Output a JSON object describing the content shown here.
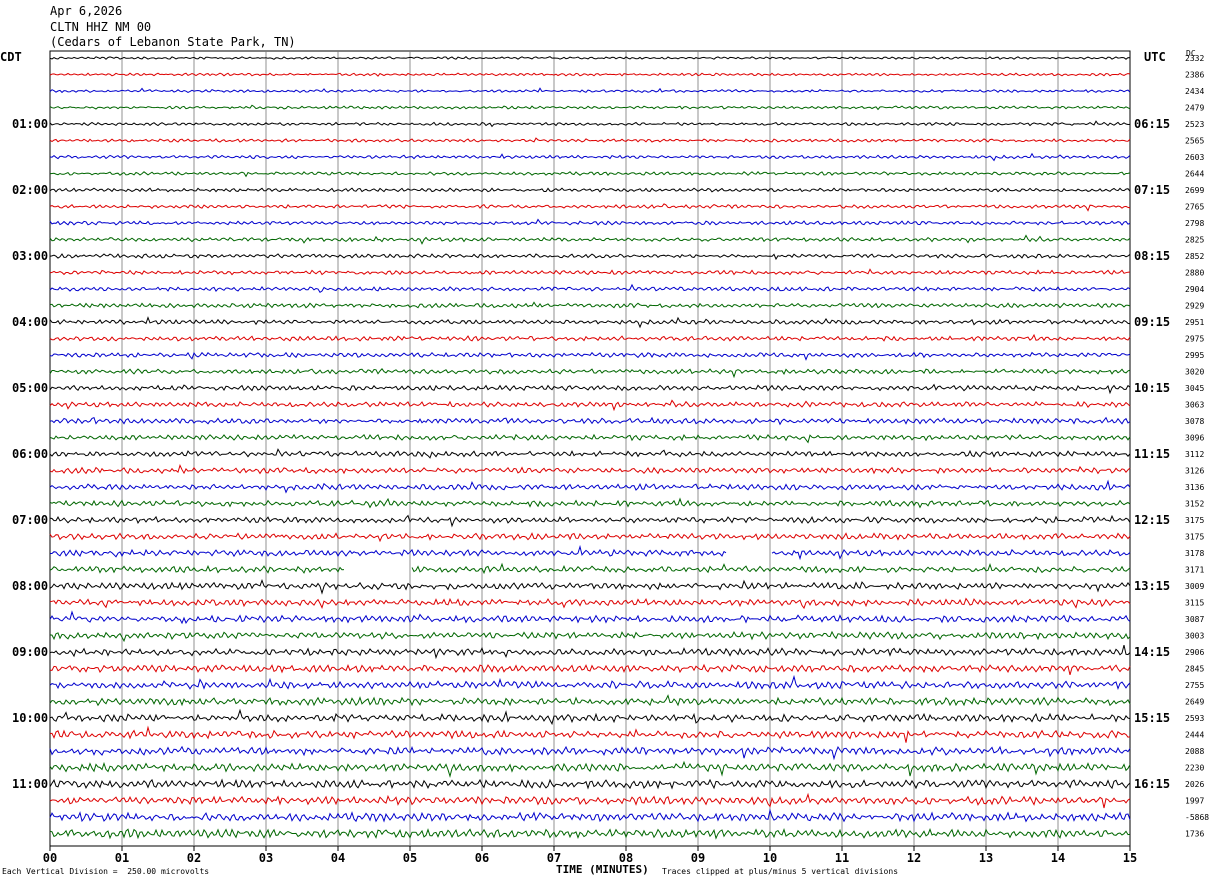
{
  "header": {
    "date": "Apr 6,2026",
    "station": "CLTN HHZ NM 00",
    "location": "(Cedars of Lebanon State Park, TN)"
  },
  "left_tz": "CDT",
  "right_tz": "UTC",
  "dc_label": "DC",
  "footer": {
    "scale_note": "Each Vertical Division =  250.00 microvolts",
    "xlabel": "TIME (MINUTES)",
    "clip_note": "Traces clipped at plus/minus 5 vertical divisions"
  },
  "chart_data": {
    "type": "line",
    "plot_kind": "helicorder",
    "minutes_per_line": 15,
    "x_ticks": [
      "00",
      "01",
      "02",
      "03",
      "04",
      "05",
      "06",
      "07",
      "08",
      "09",
      "10",
      "11",
      "12",
      "13",
      "14",
      "15"
    ],
    "left_hour_labels": [
      "01:00",
      "02:00",
      "03:00",
      "04:00",
      "05:00",
      "06:00",
      "07:00",
      "08:00",
      "09:00",
      "10:00",
      "11:00"
    ],
    "right_hour_labels": [
      "06:15",
      "07:15",
      "08:15",
      "09:15",
      "10:15",
      "11:15",
      "12:15",
      "13:15",
      "14:15",
      "15:15",
      "16:15"
    ],
    "trace_colors": [
      "#000000",
      "#dd0000",
      "#0000cc",
      "#006600"
    ],
    "dc_offsets": [
      "2332",
      "2386",
      "2434",
      "2479",
      "2523",
      "2565",
      "2603",
      "2644",
      "2699",
      "2765",
      "2798",
      "2825",
      "2852",
      "2880",
      "2904",
      "2929",
      "2951",
      "2975",
      "2995",
      "3020",
      "3045",
      "3063",
      "3078",
      "3096",
      "3112",
      "3126",
      "3136",
      "3152",
      "3175",
      "3175",
      "3178",
      "3171",
      "3009",
      "3115",
      "3087",
      "3003",
      "2906",
      "2845",
      "2755",
      "2649",
      "2593",
      "2444",
      "2088",
      "2230",
      "2026",
      "1997",
      "-5868",
      "1736"
    ],
    "gaps": [
      {
        "trace": 30,
        "start_min": 9.4,
        "end_min": 10.0
      },
      {
        "trace": 31,
        "start_min": 4.1,
        "end_min": 5.0
      }
    ],
    "grid": true
  }
}
